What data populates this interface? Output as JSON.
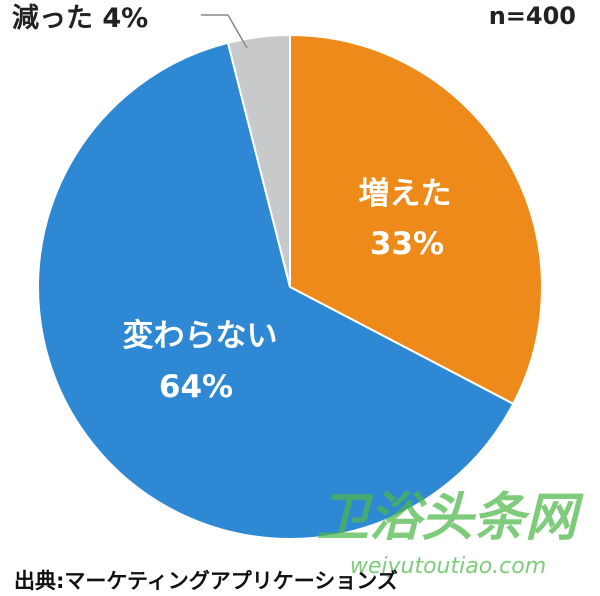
{
  "chart_data": {
    "type": "pie",
    "sample_note": "n=400",
    "source": "出典:マーケティングアプリケーションズ",
    "slices": [
      {
        "name": "増えた",
        "value": 33,
        "value_label": "33%",
        "color": "#ee8a1a"
      },
      {
        "name": "変わらない",
        "value": 64,
        "value_label": "64%",
        "color": "#2e88d4"
      },
      {
        "name": "減った",
        "value": 4,
        "value_label": "4%",
        "color": "#c8c9cb"
      }
    ],
    "outside_label": "減った 4%"
  },
  "watermark": {
    "text_cn": "卫浴头条网",
    "text_en": "weiyutoutiao.com",
    "color": "#4fb84a"
  }
}
